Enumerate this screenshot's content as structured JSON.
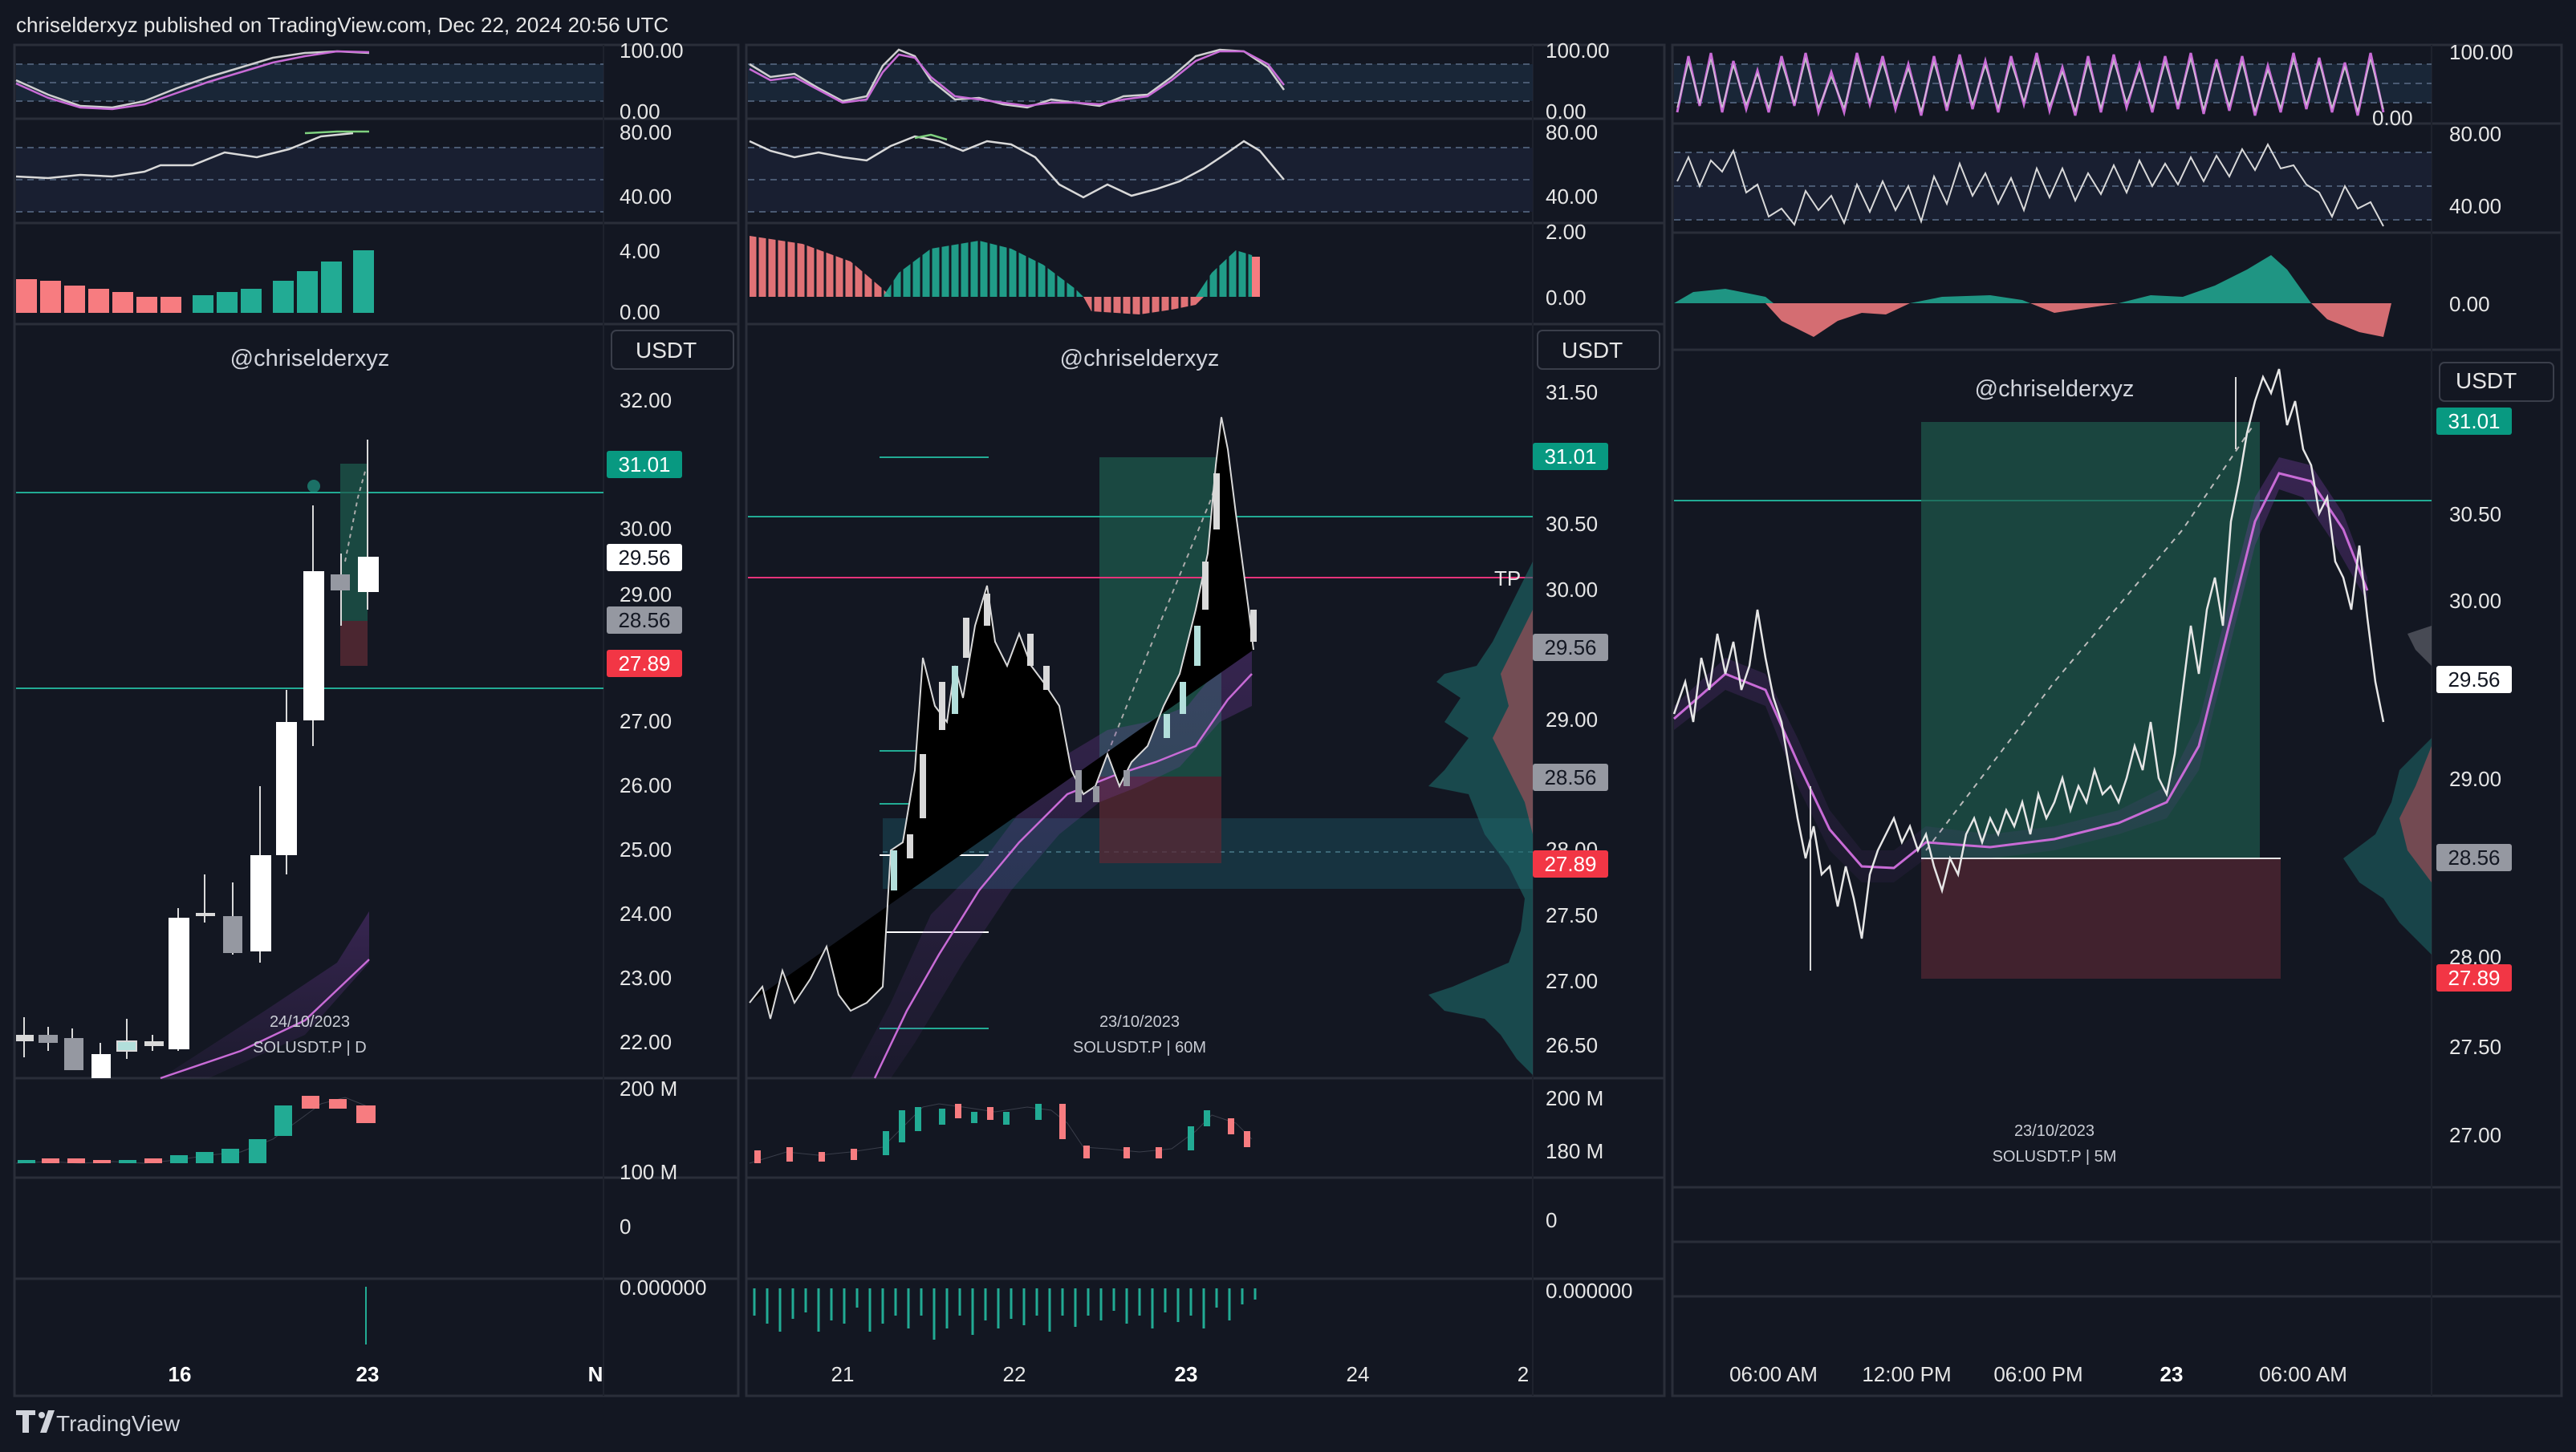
{
  "header": {
    "published_by": "chriselderxyz published on TradingView.com, Dec 22, 2024 20:56 UTC"
  },
  "footer": {
    "brand": "TradingView"
  },
  "panels": [
    {
      "watermark": "@chriselderxyz",
      "currency_button": "USDT",
      "date_caption": "24/10/2023",
      "symbol_caption": "SOLUSDT.P | D",
      "osc1_ticks": [
        "100.00",
        "0.00"
      ],
      "osc2_ticks": [
        "80.00",
        "40.00"
      ],
      "hist_ticks": [
        "4.00",
        "0.00"
      ],
      "price_ticks": [
        "32.00",
        "30.00",
        "29.00",
        "27.00",
        "26.00",
        "25.00",
        "24.00",
        "23.00",
        "22.00"
      ],
      "badges": [
        {
          "label": "31.01",
          "color": "#089981"
        },
        {
          "label": "29.56",
          "color": "#ffffff"
        },
        {
          "label": "28.56",
          "color": "#9598a1"
        },
        {
          "label": "27.89",
          "color": "#f23645"
        }
      ],
      "volume_ticks": [
        "200 M",
        "100 M"
      ],
      "ind_ticks": [
        "0",
        "0.000000"
      ],
      "time_ticks": [
        "16",
        "23",
        "N"
      ]
    },
    {
      "watermark": "@chriselderxyz",
      "currency_button": "USDT",
      "date_caption": "23/10/2023",
      "symbol_caption": "SOLUSDT.P | 60M",
      "tp_label": "TP",
      "osc1_ticks": [
        "100.00",
        "0.00"
      ],
      "osc2_ticks": [
        "80.00",
        "40.00"
      ],
      "hist_ticks": [
        "2.00",
        "0.00"
      ],
      "price_ticks": [
        "31.50",
        "30.50",
        "30.00",
        "29.00",
        "28.00",
        "27.50",
        "27.00",
        "26.50"
      ],
      "badges": [
        {
          "label": "31.01",
          "color": "#089981"
        },
        {
          "label": "29.56",
          "color": "#9598a1"
        },
        {
          "label": "28.56",
          "color": "#9598a1"
        },
        {
          "label": "27.89",
          "color": "#f23645"
        }
      ],
      "volume_ticks": [
        "200 M",
        "180 M"
      ],
      "ind_ticks": [
        "0",
        "0.000000"
      ],
      "time_ticks": [
        "21",
        "22",
        "23",
        "24",
        "2"
      ]
    },
    {
      "watermark": "@chriselderxyz",
      "currency_button": "USDT",
      "date_caption": "23/10/2023",
      "symbol_caption": "SOLUSDT.P | 5M",
      "osc1_ticks": [
        "100.00",
        "0.00"
      ],
      "osc2_ticks": [
        "80.00",
        "40.00"
      ],
      "hist_ticks": [
        "0.00"
      ],
      "price_ticks": [
        "30.50",
        "30.00",
        "29.00",
        "28.00",
        "27.50",
        "27.00"
      ],
      "badges": [
        {
          "label": "31.01",
          "color": "#089981"
        },
        {
          "label": "29.56",
          "color": "#ffffff"
        },
        {
          "label": "28.56",
          "color": "#9598a1"
        },
        {
          "label": "27.89",
          "color": "#f23645"
        }
      ],
      "time_ticks": [
        "06:00 AM",
        "12:00 PM",
        "06:00 PM",
        "23",
        "06:00 AM"
      ]
    }
  ]
}
